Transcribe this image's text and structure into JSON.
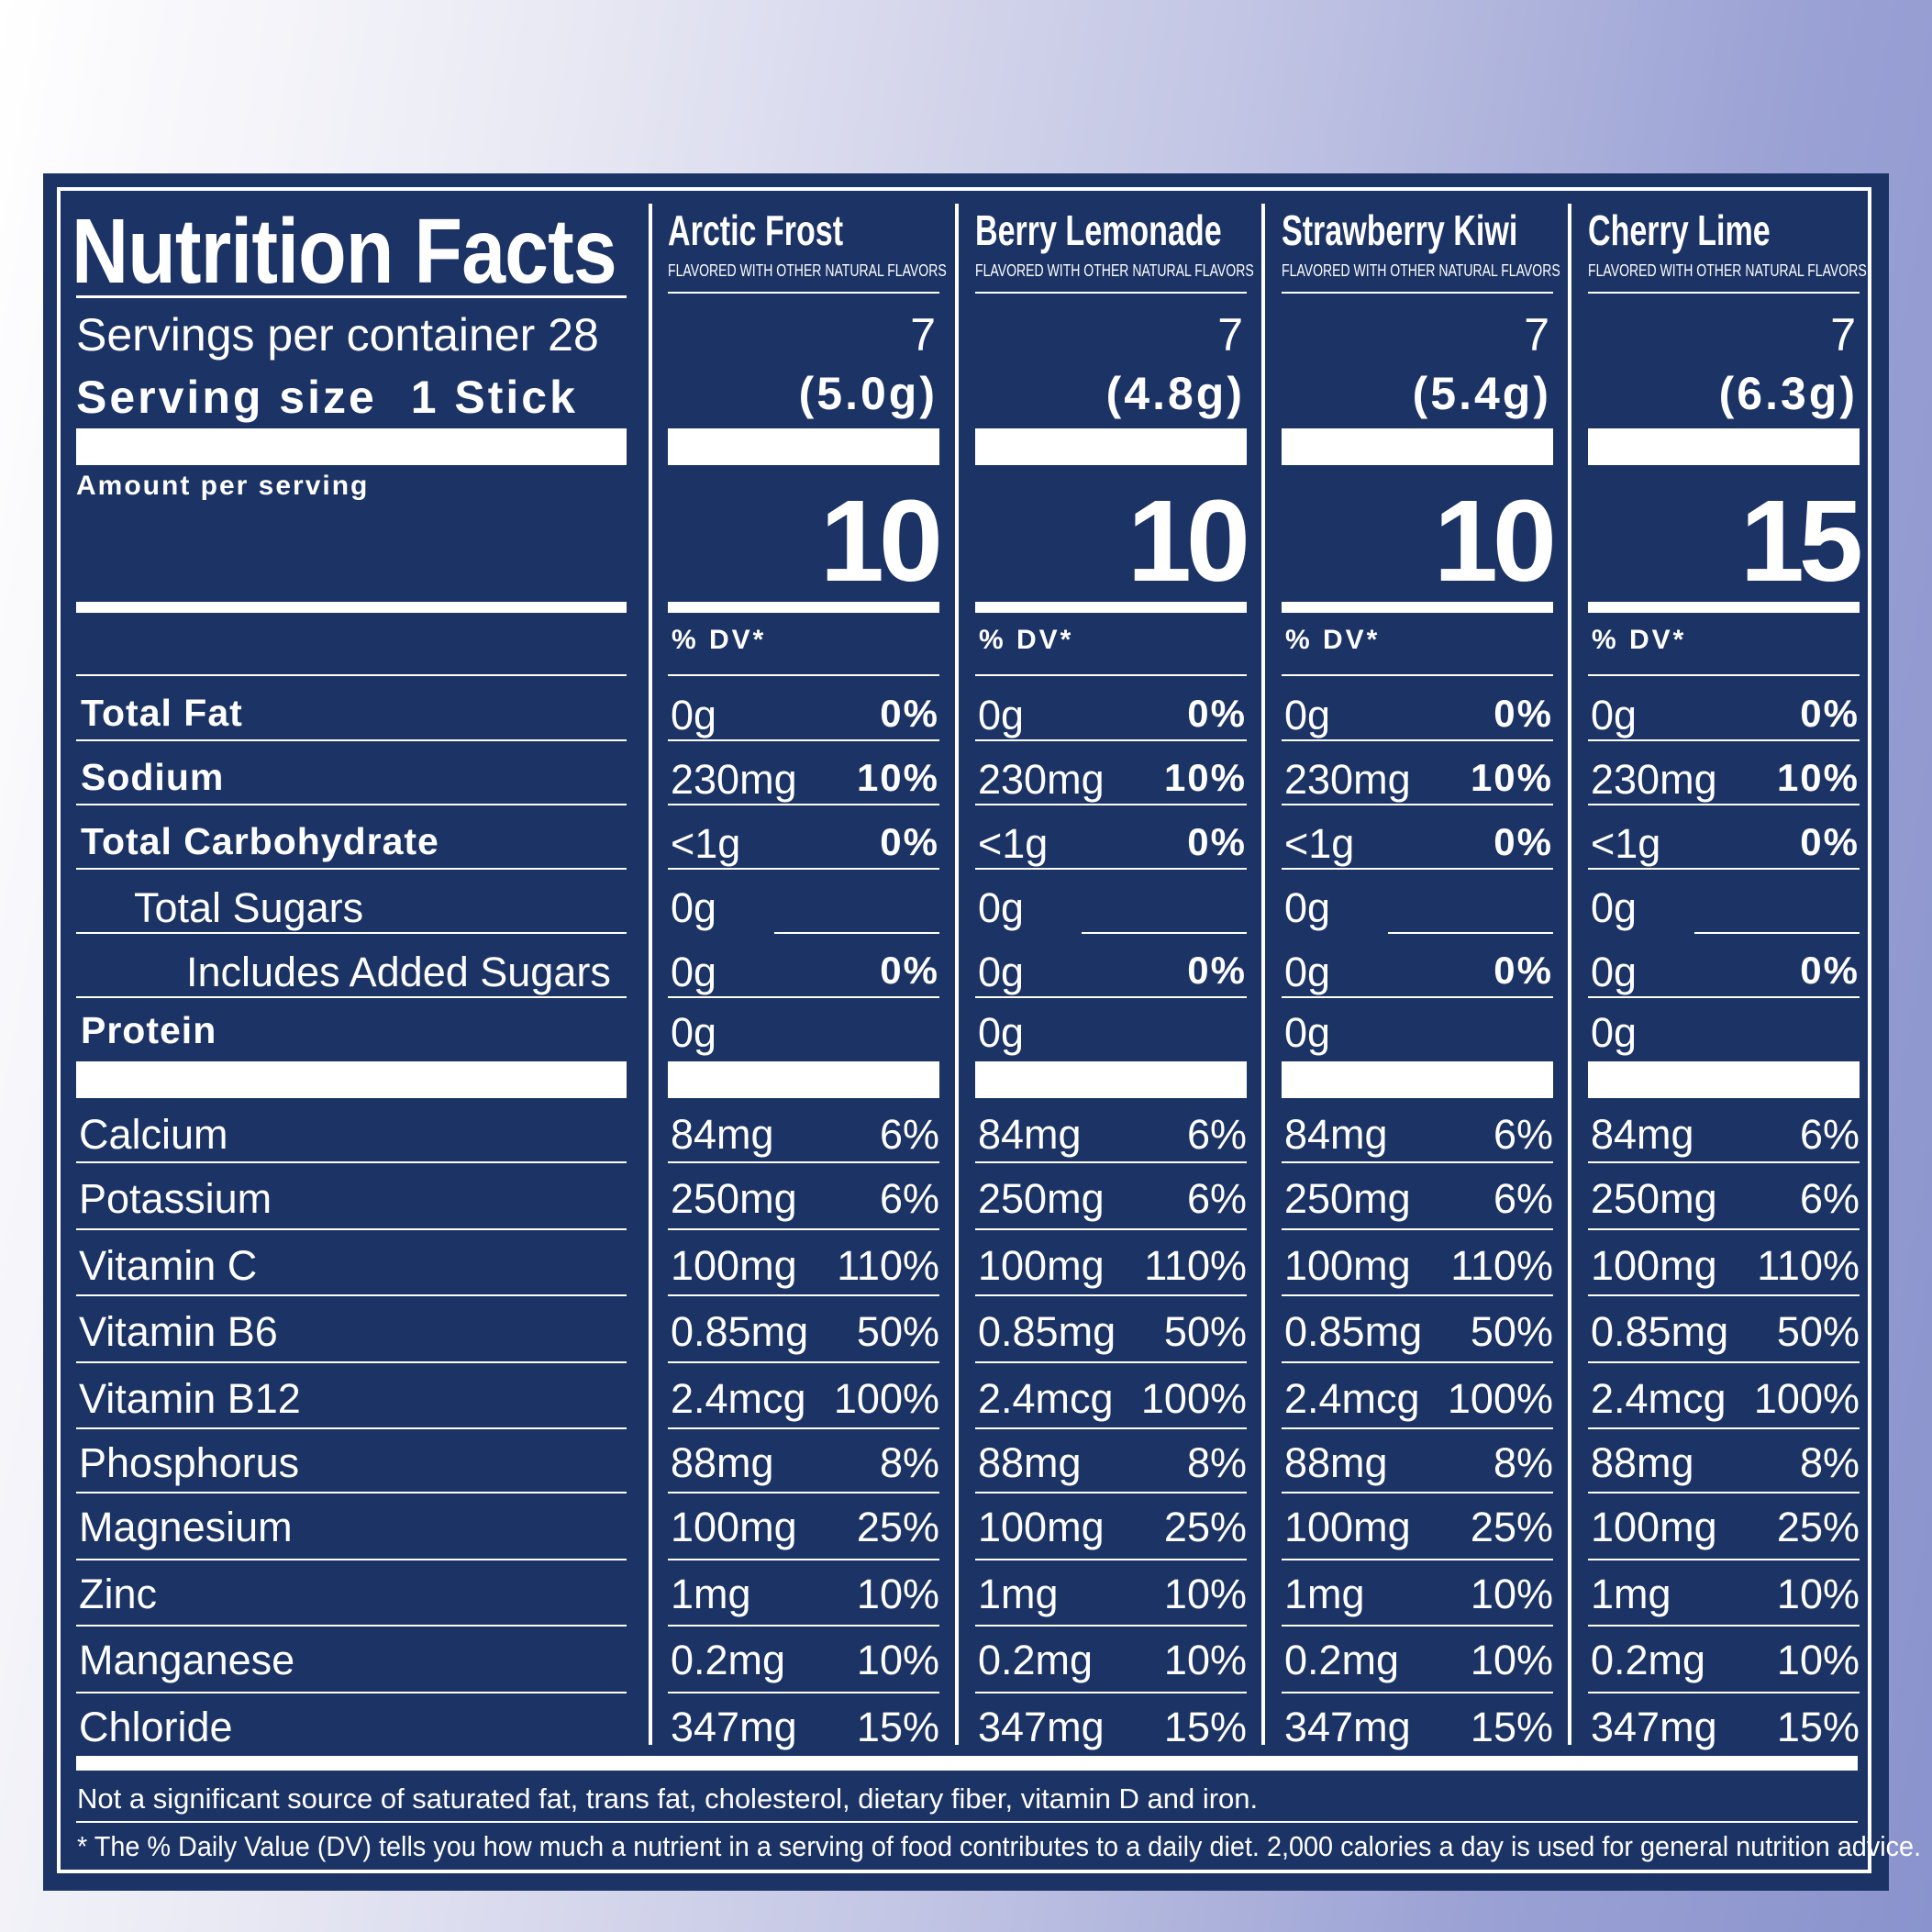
{
  "panel": {
    "title": "Nutrition Facts",
    "servings_per_container": "Servings per container 28",
    "serving_size_label": "Serving size",
    "serving_size_value": "1 Stick",
    "amount_per_serving": "Amount per serving",
    "dv_header": "% DV*"
  },
  "columns": [
    {
      "name": "Arctic Frost",
      "subtitle": "FLAVORED WITH OTHER NATURAL FLAVORS",
      "servings": "7",
      "weight": "(5.0g)",
      "calories": "10"
    },
    {
      "name": "Berry Lemonade",
      "subtitle": "FLAVORED WITH OTHER NATURAL FLAVORS",
      "servings": "7",
      "weight": "(4.8g)",
      "calories": "10"
    },
    {
      "name": "Strawberry Kiwi",
      "subtitle": "FLAVORED WITH OTHER NATURAL FLAVORS",
      "servings": "7",
      "weight": "(5.4g)",
      "calories": "10"
    },
    {
      "name": "Cherry Lime",
      "subtitle": "FLAVORED WITH OTHER NATURAL FLAVORS",
      "servings": "7",
      "weight": "(6.3g)",
      "calories": "15"
    }
  ],
  "nutrients": [
    {
      "label": "Total Fat",
      "amount": "0g",
      "dv": "0%"
    },
    {
      "label": "Sodium",
      "amount": "230mg",
      "dv": "10%"
    },
    {
      "label": "Total Carbohydrate",
      "amount": "<1g",
      "dv": "0%"
    },
    {
      "label": "Total Sugars",
      "amount": "0g",
      "dv": ""
    },
    {
      "label": "Includes Added Sugars",
      "amount": "0g",
      "dv": "0%"
    },
    {
      "label": "Protein",
      "amount": "0g",
      "dv": ""
    }
  ],
  "minerals": [
    {
      "label": "Calcium",
      "amount": "84mg",
      "dv": "6%"
    },
    {
      "label": "Potassium",
      "amount": "250mg",
      "dv": "6%"
    },
    {
      "label": "Vitamin C",
      "amount": "100mg",
      "dv": "110%"
    },
    {
      "label": "Vitamin B6",
      "amount": "0.85mg",
      "dv": "50%"
    },
    {
      "label": "Vitamin B12",
      "amount": "2.4mcg",
      "dv": "100%"
    },
    {
      "label": "Phosphorus",
      "amount": "88mg",
      "dv": "8%"
    },
    {
      "label": "Magnesium",
      "amount": "100mg",
      "dv": "25%"
    },
    {
      "label": "Zinc",
      "amount": "1mg",
      "dv": "10%"
    },
    {
      "label": "Manganese",
      "amount": "0.2mg",
      "dv": "10%"
    },
    {
      "label": "Chloride",
      "amount": "347mg",
      "dv": "15%"
    }
  ],
  "footer": {
    "note": "Not a significant source of saturated fat, trans fat, cholesterol, dietary fiber, vitamin D and iron.",
    "dv_note": "* The % Daily Value (DV) tells you how much a nutrient in a serving of food contributes to a daily diet. 2,000 calories a day is used for general nutrition advice."
  },
  "colors": {
    "panel": "#1c3366",
    "text": "#ffffff"
  }
}
